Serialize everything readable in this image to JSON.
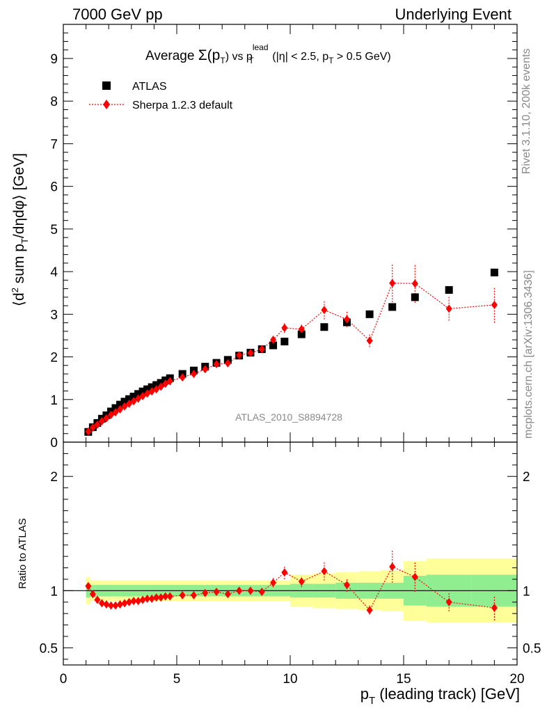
{
  "header": {
    "left": "7000 GeV pp",
    "right": "Underlying Event"
  },
  "side_labels": {
    "rivet": "Rivet 3.1.10,  200k events",
    "mcplots": "mcplots.cern.ch [arXiv:1306.3436]"
  },
  "colors": {
    "atlas": "#000000",
    "sherpa": "#ff0000",
    "band_inner": "#90ee90",
    "band_outer": "#ffff99"
  },
  "chart_data": [
    {
      "type": "scatter",
      "title": "Average Σ(pT) vs pT lead (|η| < 2.5, pT > 0.5 GeV)",
      "title_parts": {
        "a": "Average ",
        "sigma": "Σ(p",
        "sub1": "T",
        "b": ") vs p",
        "sup": "lead",
        "sub2": "T",
        "c": " (|η| < 2.5, p",
        "sub3": "T",
        "d": " > 0.5 GeV)"
      },
      "ylabel": "⟨d² sum pT/dηdφ⟩ [GeV]",
      "ylabel_parts": {
        "a": "⟨d",
        "sup": "2",
        "b": " sum p",
        "sub": "T",
        "c": "/dηdφ⟩ [GeV]"
      },
      "xlim": [
        0,
        20
      ],
      "ylim": [
        0,
        9.8
      ],
      "yticks": [
        0,
        1,
        2,
        3,
        4,
        5,
        6,
        7,
        8,
        9
      ],
      "legend_position": "top-left",
      "annotation": "ATLAS_2010_S8894728",
      "series": [
        {
          "name": "ATLAS",
          "marker": "square",
          "x": [
            1.1,
            1.3,
            1.5,
            1.7,
            1.9,
            2.1,
            2.3,
            2.5,
            2.7,
            2.9,
            3.1,
            3.3,
            3.5,
            3.7,
            3.9,
            4.1,
            4.3,
            4.5,
            4.7,
            5.25,
            5.75,
            6.25,
            6.75,
            7.25,
            7.75,
            8.25,
            8.75,
            9.25,
            9.75,
            10.5,
            11.5,
            12.5,
            13.5,
            14.5,
            15.5,
            17.0,
            19.0
          ],
          "y": [
            0.24,
            0.35,
            0.45,
            0.55,
            0.63,
            0.72,
            0.8,
            0.88,
            0.95,
            1.01,
            1.07,
            1.13,
            1.19,
            1.24,
            1.29,
            1.34,
            1.39,
            1.45,
            1.5,
            1.6,
            1.68,
            1.77,
            1.86,
            1.93,
            2.03,
            2.1,
            2.18,
            2.27,
            2.36,
            2.53,
            2.7,
            2.81,
            3.0,
            3.17,
            3.4,
            3.57,
            3.98
          ]
        },
        {
          "name": "Sherpa 1.2.3 default",
          "marker": "diamond",
          "x": [
            1.1,
            1.3,
            1.5,
            1.7,
            1.9,
            2.1,
            2.3,
            2.5,
            2.7,
            2.9,
            3.1,
            3.3,
            3.5,
            3.7,
            3.9,
            4.1,
            4.3,
            4.5,
            4.7,
            5.25,
            5.75,
            6.25,
            6.75,
            7.25,
            7.75,
            8.25,
            8.75,
            9.25,
            9.75,
            10.5,
            11.5,
            12.5,
            13.5,
            14.5,
            15.5,
            17.0,
            19.0
          ],
          "y": [
            0.25,
            0.34,
            0.41,
            0.49,
            0.56,
            0.64,
            0.7,
            0.77,
            0.84,
            0.9,
            0.96,
            1.02,
            1.08,
            1.14,
            1.19,
            1.24,
            1.3,
            1.37,
            1.43,
            1.52,
            1.6,
            1.71,
            1.83,
            1.85,
            2.04,
            2.09,
            2.18,
            2.4,
            2.68,
            2.65,
            3.1,
            2.88,
            2.38,
            3.73,
            3.72,
            3.13,
            3.22
          ],
          "yerr": [
            0.02,
            0.02,
            0.02,
            0.02,
            0.02,
            0.02,
            0.02,
            0.02,
            0.02,
            0.02,
            0.02,
            0.02,
            0.02,
            0.02,
            0.02,
            0.02,
            0.02,
            0.03,
            0.03,
            0.03,
            0.03,
            0.03,
            0.04,
            0.04,
            0.05,
            0.05,
            0.06,
            0.08,
            0.12,
            0.12,
            0.22,
            0.18,
            0.15,
            0.45,
            0.45,
            0.28,
            0.42
          ]
        }
      ]
    },
    {
      "type": "scatter",
      "title": "",
      "ylabel": "Ratio to ATLAS",
      "xlabel": "pT (leading track) [GeV]",
      "xlabel_parts": {
        "a": "p",
        "sub": "T",
        "b": " (leading track) [GeV]"
      },
      "xlim": [
        0,
        20
      ],
      "ylim": [
        0.35,
        2.3
      ],
      "xticks": [
        0,
        5,
        10,
        15,
        20
      ],
      "yticks": [
        0.5,
        1,
        2
      ],
      "ytick_labels": [
        "0.5",
        "1",
        "2"
      ],
      "reference_line": 1,
      "bands": {
        "edges": [
          1.0,
          1.2,
          1.4,
          10.0,
          11.0,
          12.0,
          13.0,
          14.0,
          15.0,
          16.0,
          18.0,
          20.0
        ],
        "inner": [
          0.06,
          0.05,
          0.05,
          0.06,
          0.06,
          0.07,
          0.07,
          0.07,
          0.13,
          0.14,
          0.14
        ],
        "outer": [
          0.12,
          0.09,
          0.09,
          0.14,
          0.15,
          0.16,
          0.17,
          0.18,
          0.26,
          0.28,
          0.28
        ]
      },
      "series": [
        {
          "name": "Sherpa 1.2.3 default",
          "marker": "diamond",
          "x": [
            1.1,
            1.3,
            1.5,
            1.7,
            1.9,
            2.1,
            2.3,
            2.5,
            2.7,
            2.9,
            3.1,
            3.3,
            3.5,
            3.7,
            3.9,
            4.1,
            4.3,
            4.5,
            4.7,
            5.25,
            5.75,
            6.25,
            6.75,
            7.25,
            7.75,
            8.25,
            8.75,
            9.25,
            9.75,
            10.5,
            11.5,
            12.5,
            13.5,
            14.5,
            15.5,
            17.0,
            19.0
          ],
          "y": [
            1.04,
            0.97,
            0.92,
            0.89,
            0.88,
            0.87,
            0.87,
            0.88,
            0.89,
            0.9,
            0.91,
            0.91,
            0.92,
            0.93,
            0.93,
            0.94,
            0.94,
            0.95,
            0.95,
            0.96,
            0.96,
            0.98,
            0.99,
            0.97,
            1.0,
            1.0,
            0.99,
            1.07,
            1.16,
            1.08,
            1.17,
            1.05,
            0.83,
            1.21,
            1.12,
            0.9,
            0.85
          ],
          "yerr": [
            0.02,
            0.01,
            0.01,
            0.01,
            0.01,
            0.01,
            0.01,
            0.01,
            0.01,
            0.01,
            0.01,
            0.01,
            0.01,
            0.01,
            0.01,
            0.01,
            0.01,
            0.01,
            0.01,
            0.02,
            0.02,
            0.02,
            0.02,
            0.02,
            0.02,
            0.02,
            0.03,
            0.04,
            0.06,
            0.05,
            0.08,
            0.06,
            0.04,
            0.14,
            0.13,
            0.08,
            0.11
          ]
        }
      ]
    }
  ]
}
